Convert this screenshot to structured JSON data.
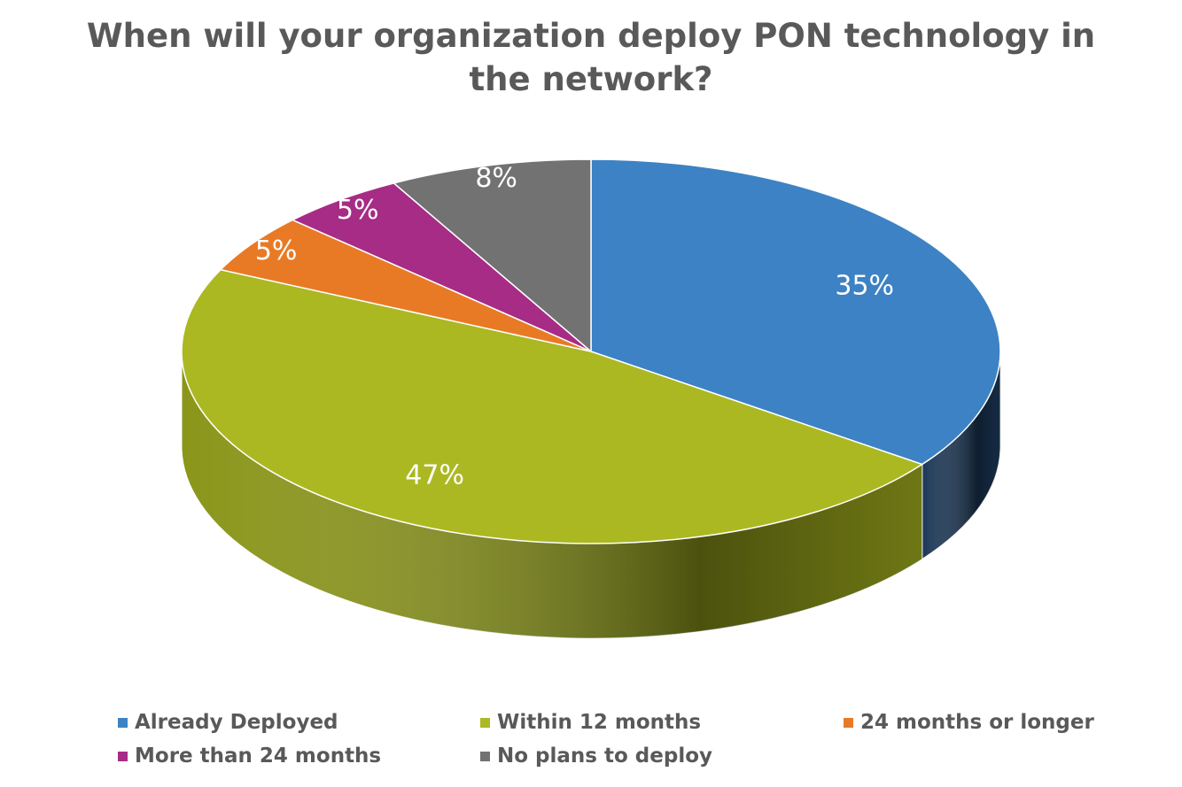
{
  "chart_data": {
    "type": "pie",
    "style": "3d",
    "title_lines": [
      "When will your organization deploy PON technology in",
      "the network?"
    ],
    "slices": [
      {
        "name": "Already Deployed",
        "value": 35,
        "label": "35%",
        "color": "#3D82C4",
        "side_color": "#1B3756"
      },
      {
        "name": "Within 12 months",
        "value": 47,
        "label": "47%",
        "color": "#ABB822",
        "side_color": "#8A9519"
      },
      {
        "name": "24 months or longer",
        "value": 5,
        "label": "5%",
        "color": "#E97A25",
        "side_color": "#A8561A"
      },
      {
        "name": "More than 24 months",
        "value": 5,
        "label": "5%",
        "color": "#A62C86",
        "side_color": "#74205E"
      },
      {
        "name": "No plans to deploy",
        "value": 8,
        "label": "8%",
        "color": "#727272",
        "side_color": "#4E4E4E"
      }
    ],
    "legend_position": "bottom"
  }
}
